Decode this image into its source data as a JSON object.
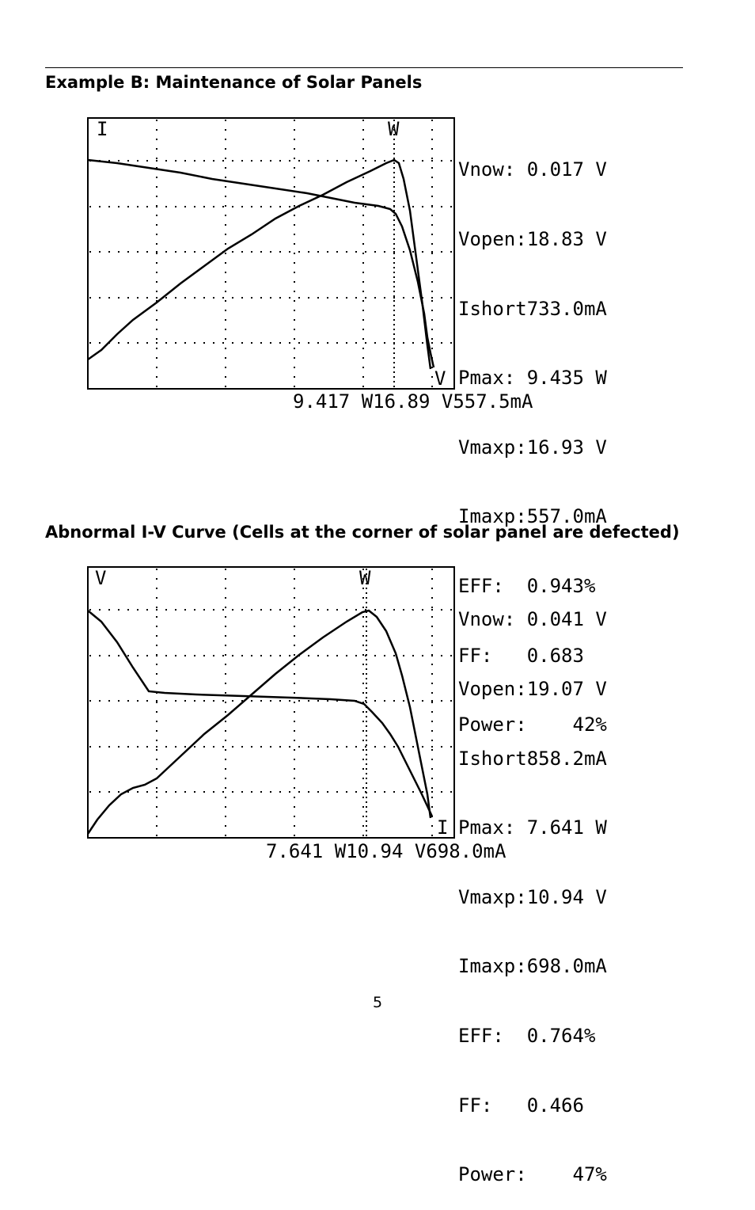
{
  "page": {
    "heading_b": "Example B: Maintenance of Solar Panels",
    "heading_abnormal": "Abnormal I-V Curve (Cells at the corner of solar panel are defected)",
    "page_number": "5"
  },
  "screens": [
    {
      "corner_labels": {
        "top_left": "I",
        "top_marker": "W",
        "bottom_right": "V"
      },
      "readout": [
        {
          "label": "Vnow:",
          "value": " 0.017 V"
        },
        {
          "label": "Vopen:",
          "value": "18.83 V"
        },
        {
          "label": "Ishort",
          "value": "733.0mA"
        },
        {
          "label": "Pmax:",
          "value": " 9.435 W"
        },
        {
          "label": "Vmaxp:",
          "value": "16.93 V"
        },
        {
          "label": "Imaxp:",
          "value": "557.0mA"
        },
        {
          "label": "EFF:",
          "value": "  0.943%"
        },
        {
          "label": "FF:",
          "value": "   0.683"
        },
        {
          "label": "Power:",
          "value": "    42%"
        }
      ],
      "cursor_readout": {
        "power": "9.417 W",
        "voltage": "16.89 V",
        "current": "557.5mA"
      }
    },
    {
      "corner_labels": {
        "top_left": "V",
        "top_marker": "W",
        "bottom_right": "I"
      },
      "readout": [
        {
          "label": "Vnow:",
          "value": " 0.041 V"
        },
        {
          "label": "Vopen:",
          "value": "19.07 V"
        },
        {
          "label": "Ishort",
          "value": "858.2mA"
        },
        {
          "label": "Pmax:",
          "value": " 7.641 W"
        },
        {
          "label": "Vmaxp:",
          "value": "10.94 V"
        },
        {
          "label": "Imaxp:",
          "value": "698.0mA"
        },
        {
          "label": "EFF:",
          "value": "  0.764%"
        },
        {
          "label": "FF:",
          "value": "   0.466"
        },
        {
          "label": "Power:",
          "value": "    47%"
        }
      ],
      "cursor_readout": {
        "power": "7.641 W",
        "voltage": "10.94 V",
        "current": "698.0mA"
      }
    }
  ]
}
